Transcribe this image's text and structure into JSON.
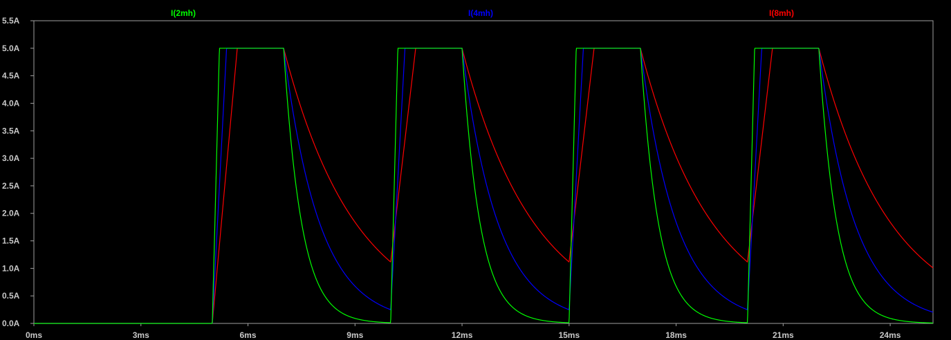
{
  "chart_data": {
    "type": "line",
    "title": "",
    "xlabel": "",
    "ylabel": "",
    "xlim": [
      0,
      25.2
    ],
    "ylim": [
      0,
      5.5
    ],
    "x_unit": "ms",
    "y_unit": "A",
    "x_ticks": [
      0,
      3,
      6,
      9,
      12,
      15,
      18,
      21,
      24
    ],
    "x_tick_labels": [
      "0ms",
      "3ms",
      "6ms",
      "9ms",
      "12ms",
      "15ms",
      "18ms",
      "21ms",
      "24ms"
    ],
    "y_ticks": [
      0,
      0.5,
      1,
      1.5,
      2,
      2.5,
      3,
      3.5,
      4,
      4.5,
      5,
      5.5
    ],
    "y_tick_labels": [
      "0.0A",
      "0.5A",
      "1.0A",
      "1.5A",
      "2.0A",
      "2.5A",
      "3.0A",
      "3.5A",
      "4.0A",
      "4.5A",
      "5.0A",
      "5.5A"
    ],
    "grid": false,
    "legend_position": "top",
    "series": [
      {
        "name": "I(2mh)",
        "color": "#00ff00",
        "pulse_start_ms": [
          5.0,
          10.0,
          15.0,
          20.0
        ],
        "pulse_on_ms": 2.0,
        "rise_ms": 0.2,
        "peak_A": 5.0,
        "decay_tau_ms": 0.5
      },
      {
        "name": "I(4mh)",
        "color": "#0000ff",
        "pulse_start_ms": [
          5.0,
          10.0,
          15.0,
          20.0
        ],
        "pulse_on_ms": 2.0,
        "rise_ms": 0.4,
        "peak_A": 5.0,
        "decay_tau_ms": 1.0
      },
      {
        "name": "I(8mh)",
        "color": "#ff0000",
        "pulse_start_ms": [
          5.0,
          10.0,
          15.0,
          20.0
        ],
        "pulse_on_ms": 2.0,
        "rise_ms": 0.7,
        "peak_A": 5.0,
        "decay_tau_ms": 2.0
      }
    ]
  }
}
